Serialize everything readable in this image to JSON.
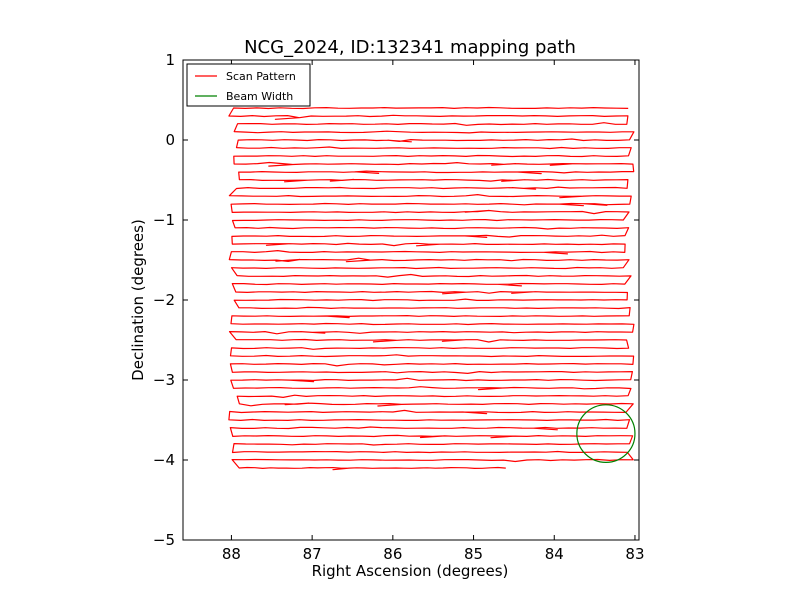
{
  "chart_data": {
    "type": "line",
    "title": "NCG_2024, ID:132341 mapping path",
    "xlabel": "Right Ascension (degrees)",
    "ylabel": "Declination (degrees)",
    "xlim": [
      88.6,
      82.95
    ],
    "ylim": [
      -5,
      1
    ],
    "xticks": [
      88,
      87,
      86,
      85,
      84,
      83
    ],
    "xtick_labels": [
      "88",
      "87",
      "86",
      "85",
      "84",
      "83"
    ],
    "yticks": [
      1,
      0,
      -1,
      -2,
      -3,
      -4,
      -5
    ],
    "ytick_labels": [
      "1",
      "0",
      "−1",
      "−2",
      "−3",
      "−4",
      "−5"
    ],
    "grid": false,
    "legend": {
      "position": "top-left",
      "entries": [
        {
          "label": "Scan Pattern",
          "color": "#ff0000"
        },
        {
          "label": "Beam Width",
          "color": "#008000"
        }
      ]
    },
    "series": [
      {
        "name": "Scan Pattern",
        "color": "#ff0000",
        "scan": {
          "dec_start": 0.4,
          "dec_end": -4.1,
          "row_spacing": 0.1,
          "ra_west_min": 87.9,
          "ra_west_max": 88.05,
          "ra_east_min": 83.0,
          "ra_east_max": 83.15,
          "end_point": [
            84.6,
            -4.1
          ]
        }
      },
      {
        "name": "Beam Width",
        "color": "#008000",
        "center": [
          83.36,
          -3.67
        ],
        "radius_deg": 0.36
      }
    ]
  }
}
